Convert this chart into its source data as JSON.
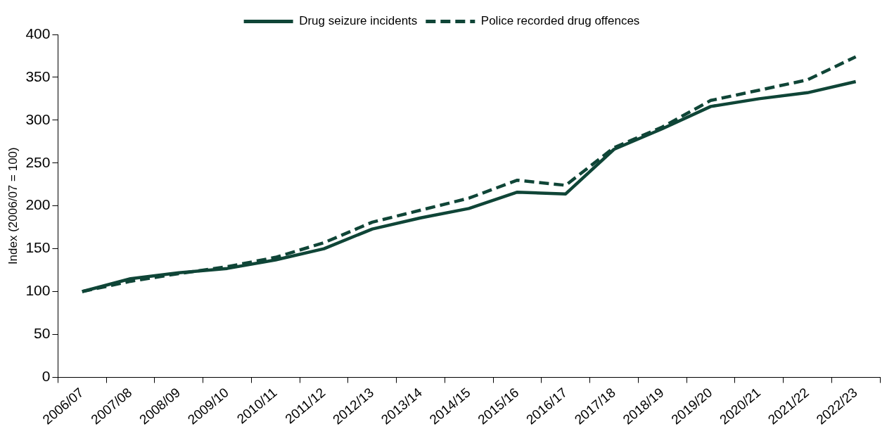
{
  "chart_data": {
    "type": "line",
    "ylabel": "Index (2006/07 = 100)",
    "categories": [
      "2006/07",
      "2007/08",
      "2008/09",
      "2009/10",
      "2010/11",
      "2011/12",
      "2012/13",
      "2013/14",
      "2014/15",
      "2015/16",
      "2016/17",
      "2017/18",
      "2018/19",
      "2019/20",
      "2020/21",
      "2021/22",
      "2022/23"
    ],
    "series": [
      {
        "name": "Drug seizure incidents",
        "color": "#0f4537",
        "line_style": "solid",
        "values": [
          100,
          115,
          122,
          127,
          137,
          150,
          173,
          186,
          197,
          216,
          214,
          266,
          290,
          316,
          325,
          332,
          345
        ]
      },
      {
        "name": "Police recorded drug offences",
        "color": "#0f4537",
        "line_style": "dashed",
        "values": [
          100,
          112,
          121,
          129,
          140,
          157,
          181,
          195,
          209,
          230,
          224,
          268,
          292,
          323,
          335,
          347,
          374
        ]
      }
    ],
    "ylim": [
      0,
      400
    ],
    "yticks": [
      0,
      50,
      100,
      150,
      200,
      250,
      300,
      350,
      400
    ],
    "grid": false,
    "legend": "top",
    "marker": "none"
  }
}
